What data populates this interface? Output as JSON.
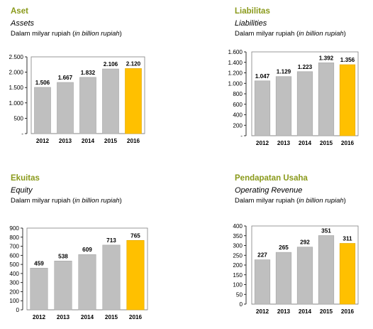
{
  "chart_data": [
    {
      "type": "bar",
      "title": "Aset",
      "subtitle": "Assets",
      "unit_prefix": "Dalam milyar rupiah (",
      "unit_italic": "in billion rupiah",
      "unit_suffix": ")",
      "categories": [
        "2012",
        "2013",
        "2014",
        "2015",
        "2016"
      ],
      "values": [
        1506,
        1667,
        1832,
        2106,
        2120
      ],
      "data_labels": [
        "1.506",
        "1.667",
        "1.832",
        "2.106",
        "2.120"
      ],
      "ylim": [
        0,
        2500
      ],
      "yticks": [
        0,
        500,
        1000,
        1500,
        2000,
        2500
      ],
      "ytick_labels": [
        "-",
        "500",
        "1.000",
        "1.500",
        "2.000",
        "2.500"
      ],
      "highlight_index": 4
    },
    {
      "type": "bar",
      "title": "Liabilitas",
      "subtitle": "Liabilities",
      "unit_prefix": "Dalam milyar rupiah (",
      "unit_italic": "in billion rupiah",
      "unit_suffix": ")",
      "categories": [
        "2012",
        "2013",
        "2014",
        "2015",
        "2016"
      ],
      "values": [
        1047,
        1129,
        1223,
        1392,
        1356
      ],
      "data_labels": [
        "1.047",
        "1.129",
        "1.223",
        "1.392",
        "1.356"
      ],
      "ylim": [
        0,
        1600
      ],
      "yticks": [
        0,
        200,
        400,
        600,
        800,
        1000,
        1200,
        1400,
        1600
      ],
      "ytick_labels": [
        "-",
        "200",
        "400",
        "600",
        "800",
        "1.000",
        "1.200",
        "1.400",
        "1.600"
      ],
      "highlight_index": 4
    },
    {
      "type": "bar",
      "title": "Ekuitas",
      "subtitle": "Equity",
      "unit_prefix": "Dalam milyar rupiah (",
      "unit_italic": "in billion rupiah",
      "unit_suffix": ")",
      "categories": [
        "2012",
        "2013",
        "2014",
        "2015",
        "2016"
      ],
      "values": [
        459,
        538,
        609,
        713,
        765
      ],
      "data_labels": [
        "459",
        "538",
        "609",
        "713",
        "765"
      ],
      "ylim": [
        0,
        900
      ],
      "yticks": [
        0,
        100,
        200,
        300,
        400,
        500,
        600,
        700,
        800,
        900
      ],
      "ytick_labels": [
        "0",
        "100",
        "200",
        "300",
        "400",
        "500",
        "600",
        "700",
        "800",
        "900"
      ],
      "highlight_index": 4
    },
    {
      "type": "bar",
      "title": "Pendapatan Usaha",
      "subtitle": "Operating Revenue",
      "unit_prefix": "Dalam milyar rupiah (",
      "unit_italic": "in billion rupiah",
      "unit_suffix": ")",
      "categories": [
        "2012",
        "2013",
        "2014",
        "2015",
        "2016"
      ],
      "values": [
        227,
        265,
        292,
        351,
        311
      ],
      "data_labels": [
        "227",
        "265",
        "292",
        "351",
        "311"
      ],
      "ylim": [
        0,
        400
      ],
      "yticks": [
        0,
        50,
        100,
        150,
        200,
        250,
        300,
        350,
        400
      ],
      "ytick_labels": [
        "0",
        "50",
        "100",
        "150",
        "200",
        "250",
        "300",
        "350",
        "400"
      ],
      "highlight_index": 4
    }
  ],
  "colors": {
    "title": "#8a9a1b",
    "bar": "#bfbfbf",
    "bar_stroke": "#a6a6a6",
    "highlight": "#ffc000",
    "highlight_stroke": "#e0a800",
    "plot_border": "#7f7f7f",
    "gridline": "#d9d9d9"
  }
}
